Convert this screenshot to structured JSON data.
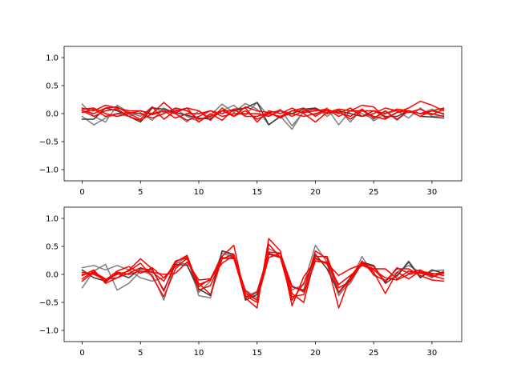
{
  "chart_data": [
    {
      "type": "line",
      "title": "",
      "xlabel": "",
      "ylabel": "",
      "xlim": [
        -1.55,
        32.55
      ],
      "ylim": [
        -1.2,
        1.2
      ],
      "xticks": [
        0,
        5,
        10,
        15,
        20,
        25,
        30
      ],
      "yticks": [
        -1.0,
        -0.5,
        0.0,
        0.5,
        1.0
      ],
      "xtick_labels": [
        "0",
        "5",
        "10",
        "15",
        "20",
        "25",
        "30"
      ],
      "ytick_labels": [
        "−1.0",
        "−0.5",
        "0.0",
        "0.5",
        "1.0"
      ],
      "grid": false,
      "x": [
        0,
        1,
        2,
        3,
        4,
        5,
        6,
        7,
        8,
        9,
        10,
        11,
        12,
        13,
        14,
        15,
        16,
        17,
        18,
        19,
        20,
        21,
        22,
        23,
        24,
        25,
        26,
        27,
        28,
        29,
        30,
        31
      ],
      "series": [
        {
          "color": "#7f7f7f",
          "values": [
            0.17,
            -0.05,
            -0.15,
            0.15,
            0.02,
            -0.05,
            0.12,
            0.02,
            0.08,
            -0.05,
            -0.14,
            -0.03,
            0.17,
            0.02,
            0.18,
            0.08,
            -0.2,
            -0.05,
            -0.28,
            0.05,
            -0.02,
            0.1,
            -0.2,
            0.05,
            0.0,
            -0.1,
            0.04,
            -0.12,
            0.05,
            0.0,
            0.08,
            -0.02
          ]
        },
        {
          "color": "#7f7f7f",
          "values": [
            -0.05,
            -0.2,
            -0.08,
            0.0,
            -0.05,
            0.02,
            -0.12,
            0.1,
            0.0,
            -0.15,
            0.05,
            -0.08,
            0.05,
            0.15,
            -0.03,
            0.2,
            -0.05,
            0.08,
            -0.22,
            0.03,
            0.1,
            -0.05,
            0.08,
            -0.15,
            0.08,
            -0.13,
            0.0,
            0.05,
            -0.08,
            0.1,
            -0.05,
            -0.04
          ]
        },
        {
          "color": "#3a3a3a",
          "values": [
            -0.1,
            -0.1,
            0.1,
            0.05,
            -0.05,
            -0.15,
            0.1,
            0.08,
            0.02,
            -0.03,
            -0.08,
            -0.1,
            0.05,
            0.05,
            0.1,
            0.2,
            -0.2,
            -0.05,
            0.0,
            0.08,
            0.1,
            0.0,
            0.05,
            0.0,
            -0.05,
            0.05,
            -0.05,
            -0.05,
            0.05,
            -0.05,
            -0.06,
            -0.08
          ]
        },
        {
          "color": "#ff0000",
          "values": [
            0.1,
            0.05,
            0.15,
            0.1,
            0.05,
            0.05,
            0.0,
            0.2,
            0.02,
            0.1,
            -0.15,
            0.0,
            -0.12,
            0.08,
            0.1,
            -0.15,
            0.05,
            0.0,
            0.1,
            0.0,
            -0.15,
            0.02,
            0.08,
            0.05,
            0.15,
            0.12,
            -0.08,
            0.02,
            0.1,
            0.22,
            0.15,
            0.05
          ]
        },
        {
          "color": "#ff0000",
          "values": [
            0.05,
            0.0,
            0.1,
            0.12,
            0.0,
            -0.1,
            0.12,
            -0.1,
            0.05,
            0.1,
            0.05,
            -0.12,
            0.1,
            -0.05,
            0.12,
            0.05,
            0.02,
            -0.08,
            0.05,
            0.1,
            -0.05,
            0.08,
            0.0,
            0.1,
            -0.05,
            0.0,
            0.1,
            0.05,
            0.02,
            0.08,
            -0.02,
            0.08
          ]
        },
        {
          "color": "#ff0000",
          "values": [
            0.08,
            0.1,
            0.0,
            -0.05,
            0.0,
            0.05,
            -0.02,
            0.05,
            0.0,
            -0.12,
            -0.05,
            0.05,
            0.0,
            0.08,
            -0.05,
            -0.05,
            0.02,
            0.05,
            -0.05,
            0.05,
            0.08,
            0.0,
            0.05,
            -0.1,
            0.05,
            0.05,
            0.0,
            0.08,
            0.05,
            0.0,
            0.05,
            0.1
          ]
        },
        {
          "color": "#ff0000",
          "values": [
            0.05,
            -0.05,
            0.05,
            0.08,
            -0.05,
            -0.12,
            0.0,
            0.05,
            -0.08,
            0.0,
            0.0,
            0.05,
            -0.05,
            0.0,
            0.0,
            0.0,
            -0.05,
            0.05,
            0.0,
            -0.05,
            0.0,
            0.05,
            0.02,
            -0.05,
            0.08,
            -0.08,
            0.05,
            -0.1,
            0.05,
            0.0,
            0.0,
            -0.05
          ]
        },
        {
          "color": "#ff0000",
          "values": [
            0.02,
            0.08,
            -0.05,
            0.0,
            0.02,
            0.0,
            -0.08,
            0.0,
            0.1,
            0.05,
            -0.1,
            -0.05,
            0.05,
            -0.05,
            0.05,
            -0.1,
            0.0,
            -0.05,
            0.05,
            0.02,
            0.05,
            0.08,
            -0.05,
            0.05,
            0.05,
            -0.05,
            -0.1,
            0.02,
            0.05,
            -0.05,
            0.05,
            0.0
          ]
        }
      ]
    },
    {
      "type": "line",
      "title": "",
      "xlabel": "",
      "ylabel": "",
      "xlim": [
        -1.55,
        32.55
      ],
      "ylim": [
        -1.2,
        1.2
      ],
      "xticks": [
        0,
        5,
        10,
        15,
        20,
        25,
        30
      ],
      "yticks": [
        -1.0,
        -0.5,
        0.0,
        0.5,
        1.0
      ],
      "xtick_labels": [
        "0",
        "5",
        "10",
        "15",
        "20",
        "25",
        "30"
      ],
      "ytick_labels": [
        "−1.0",
        "−0.5",
        "0.0",
        "0.5",
        "1.0"
      ],
      "grid": false,
      "x": [
        0,
        1,
        2,
        3,
        4,
        5,
        6,
        7,
        8,
        9,
        10,
        11,
        12,
        13,
        14,
        15,
        16,
        17,
        18,
        19,
        20,
        21,
        22,
        23,
        24,
        25,
        26,
        27,
        28,
        29,
        30,
        31
      ],
      "series": [
        {
          "color": "#7f7f7f",
          "values": [
            0.12,
            0.16,
            0.08,
            0.16,
            0.08,
            -0.06,
            -0.12,
            -0.06,
            0.18,
            0.32,
            -0.38,
            -0.42,
            0.42,
            0.32,
            -0.4,
            -0.3,
            0.38,
            0.32,
            -0.28,
            -0.18,
            0.52,
            0.22,
            -0.38,
            -0.12,
            0.32,
            -0.02,
            -0.1,
            -0.04,
            0.24,
            -0.04,
            0.06,
            0.08
          ]
        },
        {
          "color": "#7f7f7f",
          "values": [
            -0.24,
            0.06,
            0.18,
            -0.28,
            -0.16,
            0.06,
            0.0,
            -0.46,
            0.22,
            0.18,
            -0.32,
            -0.12,
            0.38,
            0.3,
            -0.28,
            -0.42,
            0.46,
            0.36,
            -0.2,
            -0.32,
            0.3,
            0.18,
            -0.34,
            -0.16,
            0.2,
            0.08,
            -0.12,
            0.04,
            0.16,
            0.04,
            -0.06,
            0.06
          ]
        },
        {
          "color": "#3a3a3a",
          "values": [
            0.08,
            -0.06,
            -0.12,
            0.02,
            -0.06,
            0.1,
            0.08,
            -0.28,
            0.18,
            0.16,
            -0.26,
            -0.38,
            0.42,
            0.36,
            -0.46,
            -0.36,
            0.36,
            0.3,
            -0.22,
            -0.28,
            0.36,
            0.1,
            -0.32,
            -0.06,
            0.22,
            0.16,
            -0.16,
            -0.02,
            0.22,
            -0.06,
            0.08,
            0.02
          ]
        },
        {
          "color": "#ff0000",
          "values": [
            -0.02,
            0.08,
            -0.16,
            -0.06,
            0.08,
            0.28,
            0.1,
            -0.3,
            0.22,
            0.34,
            -0.22,
            -0.08,
            0.32,
            0.52,
            -0.42,
            -0.6,
            0.64,
            0.42,
            -0.56,
            -0.04,
            0.24,
            0.22,
            -0.6,
            -0.04,
            0.22,
            0.04,
            -0.34,
            0.04,
            -0.08,
            0.06,
            0.02,
            -0.02
          ]
        },
        {
          "color": "#ff0000",
          "values": [
            0.04,
            0.0,
            -0.1,
            0.0,
            0.06,
            0.2,
            -0.04,
            -0.4,
            0.1,
            0.3,
            -0.28,
            -0.2,
            0.28,
            0.36,
            -0.3,
            -0.46,
            0.4,
            0.38,
            -0.34,
            -0.5,
            0.32,
            0.32,
            -0.24,
            -0.12,
            0.2,
            0.14,
            -0.14,
            0.12,
            0.02,
            0.08,
            -0.04,
            0.02
          ]
        },
        {
          "color": "#ff0000",
          "values": [
            -0.08,
            0.06,
            -0.14,
            0.04,
            0.0,
            0.06,
            0.04,
            0.0,
            0.02,
            0.22,
            -0.1,
            -0.08,
            0.2,
            0.34,
            -0.38,
            -0.5,
            0.54,
            0.3,
            -0.4,
            -0.36,
            0.24,
            0.2,
            -0.02,
            0.1,
            0.18,
            0.1,
            0.1,
            -0.08,
            0.06,
            0.02,
            -0.02,
            -0.08
          ]
        },
        {
          "color": "#ff0000",
          "values": [
            -0.12,
            0.04,
            -0.08,
            -0.06,
            0.02,
            0.12,
            0.04,
            -0.12,
            0.24,
            0.3,
            -0.18,
            -0.1,
            0.3,
            0.28,
            -0.34,
            -0.46,
            0.3,
            0.38,
            -0.22,
            -0.3,
            0.42,
            0.28,
            -0.32,
            -0.1,
            0.24,
            0.0,
            -0.12,
            0.1,
            0.1,
            -0.02,
            -0.1,
            -0.12
          ]
        },
        {
          "color": "#ff0000",
          "values": [
            0.0,
            0.02,
            -0.1,
            0.06,
            0.14,
            0.02,
            0.12,
            -0.06,
            0.14,
            0.28,
            -0.16,
            -0.36,
            0.28,
            0.3,
            -0.42,
            -0.32,
            0.38,
            0.3,
            -0.46,
            -0.16,
            0.28,
            0.2,
            -0.18,
            -0.02,
            0.16,
            0.08,
            -0.06,
            -0.1,
            0.0,
            0.04,
            0.0,
            0.04
          ]
        }
      ]
    }
  ]
}
